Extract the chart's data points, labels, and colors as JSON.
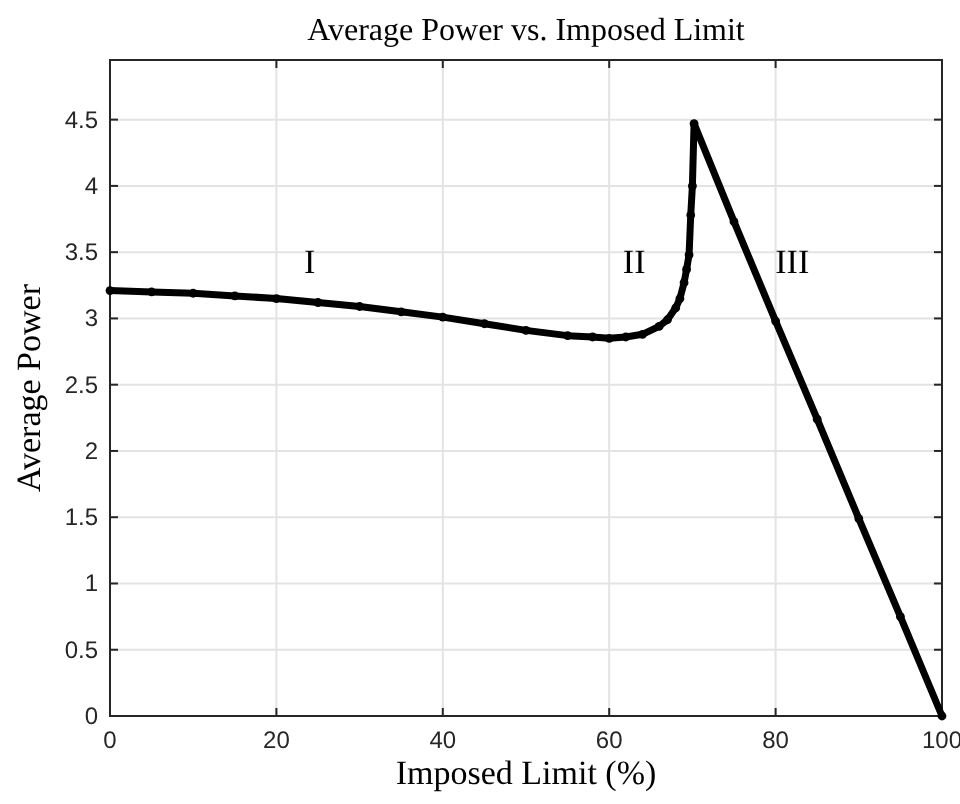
{
  "chart_data": {
    "type": "line",
    "title": "Average Power vs. Imposed Limit",
    "xlabel": "Imposed Limit (%)",
    "ylabel": "Average Power",
    "xlim": [
      0,
      100
    ],
    "xticks": [
      0,
      20,
      40,
      60,
      80,
      100
    ],
    "ylim": [
      0,
      4.95
    ],
    "yticks": [
      0,
      0.5,
      1,
      1.5,
      2,
      2.5,
      3,
      3.5,
      4,
      4.5
    ],
    "grid": true,
    "marker": "circle",
    "line_style": "solid",
    "series": [
      {
        "color": "#000000",
        "x": [
          0,
          5,
          10,
          15,
          20,
          25,
          30,
          35,
          40,
          45,
          50,
          55,
          58,
          60,
          62,
          64,
          66,
          67,
          68,
          68.5,
          69,
          69.3,
          69.6,
          69.8,
          70,
          70.2,
          75,
          80,
          85,
          90,
          95,
          100
        ],
        "values": [
          3.21,
          3.2,
          3.19,
          3.17,
          3.15,
          3.12,
          3.09,
          3.05,
          3.01,
          2.96,
          2.91,
          2.87,
          2.86,
          2.85,
          2.86,
          2.88,
          2.94,
          2.99,
          3.08,
          3.15,
          3.27,
          3.37,
          3.48,
          3.78,
          4.0,
          4.47,
          3.73,
          2.98,
          2.24,
          1.49,
          0.75,
          0
        ]
      }
    ],
    "annotations": [
      "I",
      "II",
      "III"
    ]
  }
}
